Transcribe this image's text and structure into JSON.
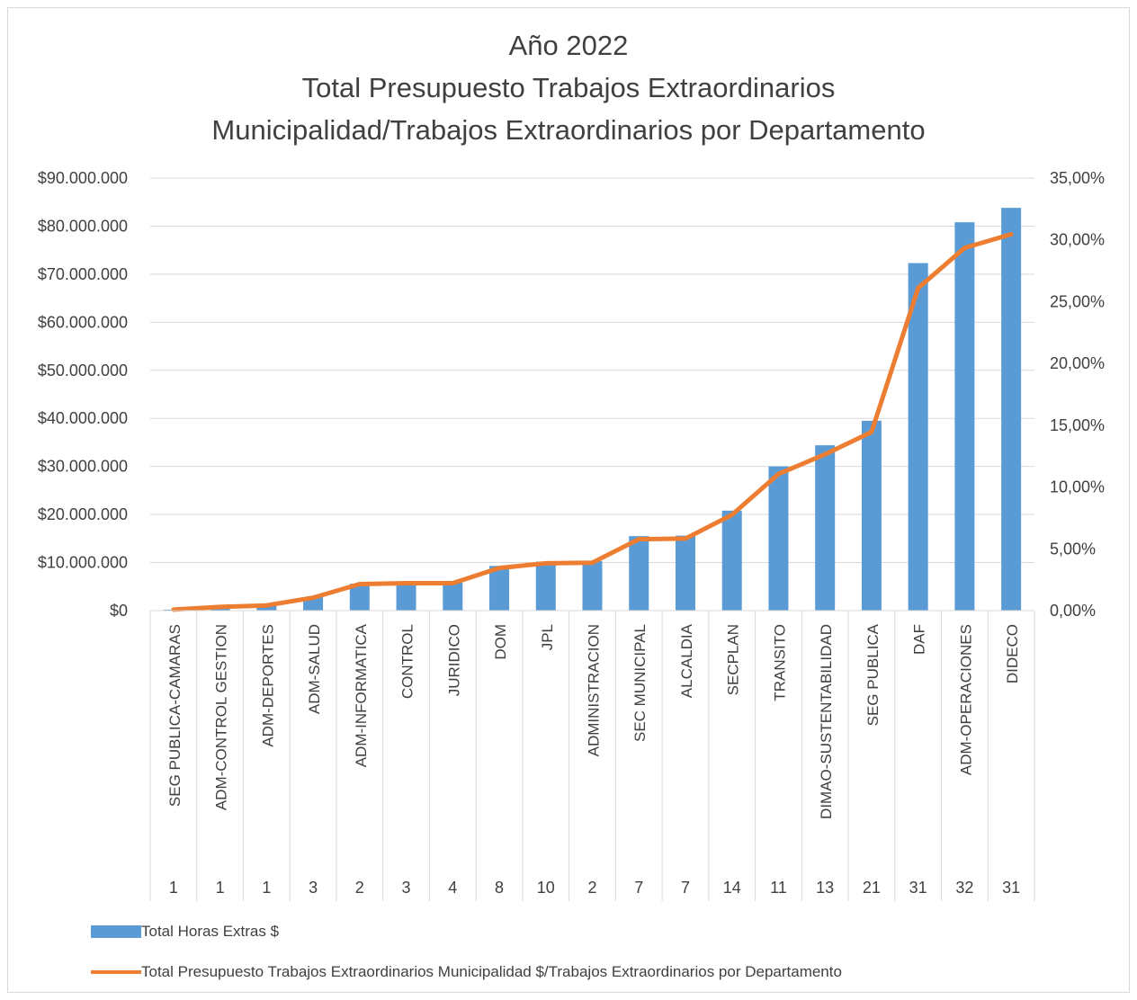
{
  "chart_data": {
    "type": "bar",
    "title_lines": [
      "Año 2022",
      "Total Presupuesto Trabajos Extraordinarios",
      "Municipalidad/Trabajos Extraordinarios por Departamento"
    ],
    "categories": [
      "SEG PUBLICA-CAMARAS",
      "ADM-CONTROL GESTION",
      "ADM-DEPORTES",
      "ADM-SALUD",
      "ADM-INFORMATICA",
      "CONTROL",
      "JURIDICO",
      "DOM",
      "JPL",
      "ADMINISTRACION",
      "SEC MUNICIPAL",
      "ALCALDIA",
      "SECPLAN",
      "TRANSITO",
      "DIMAO-SUSTENTABILIDAD",
      "SEG PUBLICA",
      "DAF",
      "ADM-OPERACIONES",
      "DIDECO"
    ],
    "counts": [
      "1",
      "1",
      "1",
      "3",
      "2",
      "3",
      "4",
      "8",
      "10",
      "2",
      "7",
      "7",
      "14",
      "11",
      "13",
      "21",
      "31",
      "32",
      "31"
    ],
    "series": [
      {
        "name": "Total Horas Extras $",
        "kind": "bar",
        "axis": "left",
        "color": "#5b9bd5",
        "values": [
          200000,
          700000,
          1000000,
          2800000,
          5600000,
          5700000,
          5800000,
          9300000,
          10200000,
          10300000,
          15500000,
          15600000,
          20800000,
          30000000,
          34400000,
          39500000,
          72300000,
          80800000,
          83800000
        ]
      },
      {
        "name": "Total Presupuesto Trabajos Extraordinarios Municipalidad $/Trabajos Extraordinarios por Departamento",
        "kind": "line",
        "axis": "right",
        "color": "#ed7d31",
        "values": [
          0.0008,
          0.003,
          0.0042,
          0.0105,
          0.0215,
          0.0222,
          0.0222,
          0.0345,
          0.0383,
          0.0388,
          0.0578,
          0.0583,
          0.0775,
          0.1105,
          0.1265,
          0.1445,
          0.261,
          0.2935,
          0.3045
        ]
      }
    ],
    "y_left": {
      "min": 0,
      "max": 90000000,
      "step": 10000000,
      "ticks": [
        "$0",
        "$10.000.000",
        "$20.000.000",
        "$30.000.000",
        "$40.000.000",
        "$50.000.000",
        "$60.000.000",
        "$70.000.000",
        "$80.000.000",
        "$90.000.000"
      ]
    },
    "y_right": {
      "min": 0,
      "max": 0.35,
      "step": 0.05,
      "ticks": [
        "0,00%",
        "5,00%",
        "10,00%",
        "15,00%",
        "20,00%",
        "25,00%",
        "30,00%",
        "35,00%"
      ]
    },
    "grid": true,
    "legend_position": "bottom"
  }
}
